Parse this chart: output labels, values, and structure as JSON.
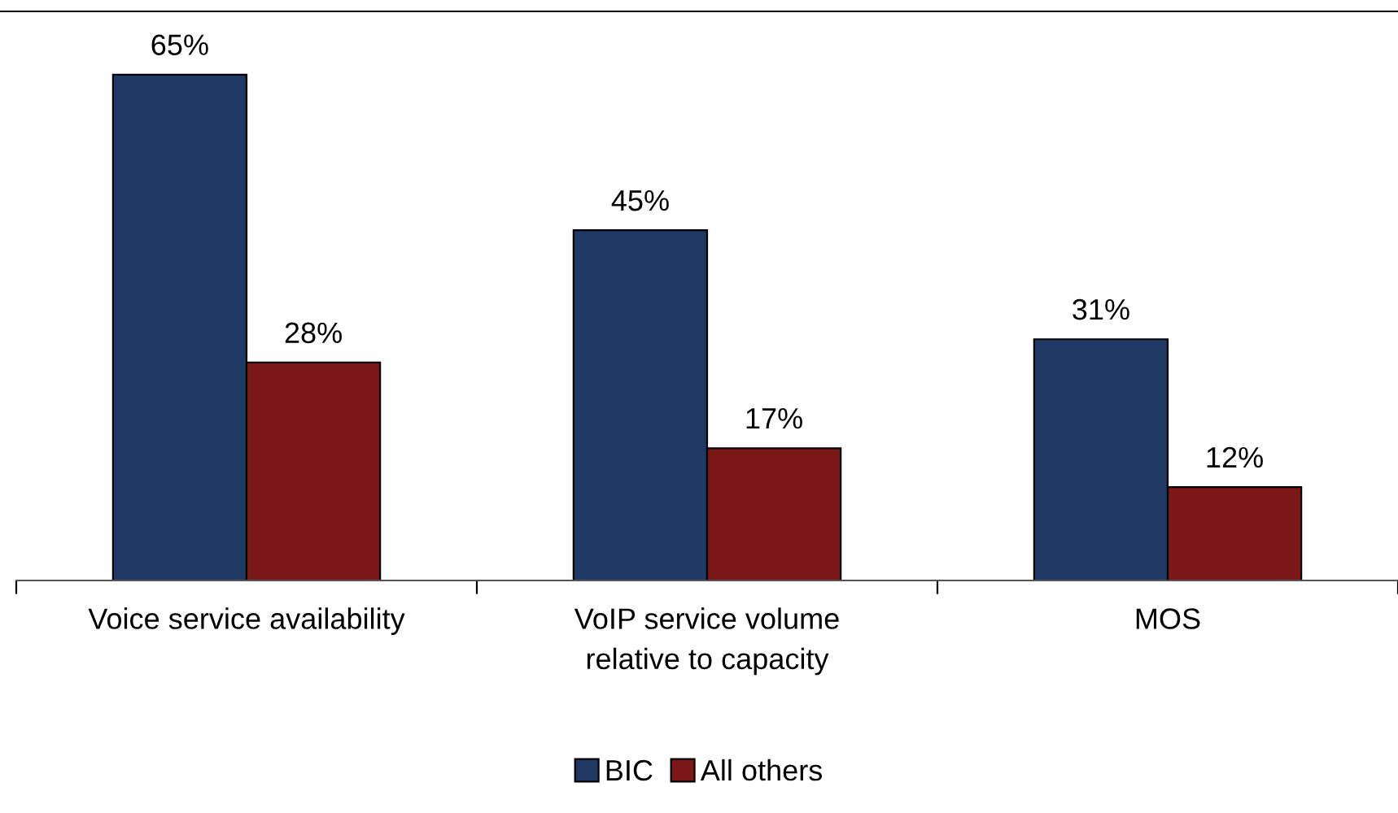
{
  "chart_data": {
    "type": "bar",
    "categories": [
      "Voice service availability",
      "VoIP service volume\nrelative to capacity",
      "MOS"
    ],
    "series": [
      {
        "name": "BIC",
        "color": "#1f3864",
        "values": [
          65,
          45,
          31
        ],
        "value_labels": [
          "65%",
          "45%",
          "31%"
        ]
      },
      {
        "name": "All others",
        "color": "#7b1717",
        "values": [
          28,
          17,
          12
        ],
        "value_labels": [
          "28%",
          "17%",
          "12%"
        ]
      }
    ],
    "legend": "bottom",
    "grid": false
  }
}
